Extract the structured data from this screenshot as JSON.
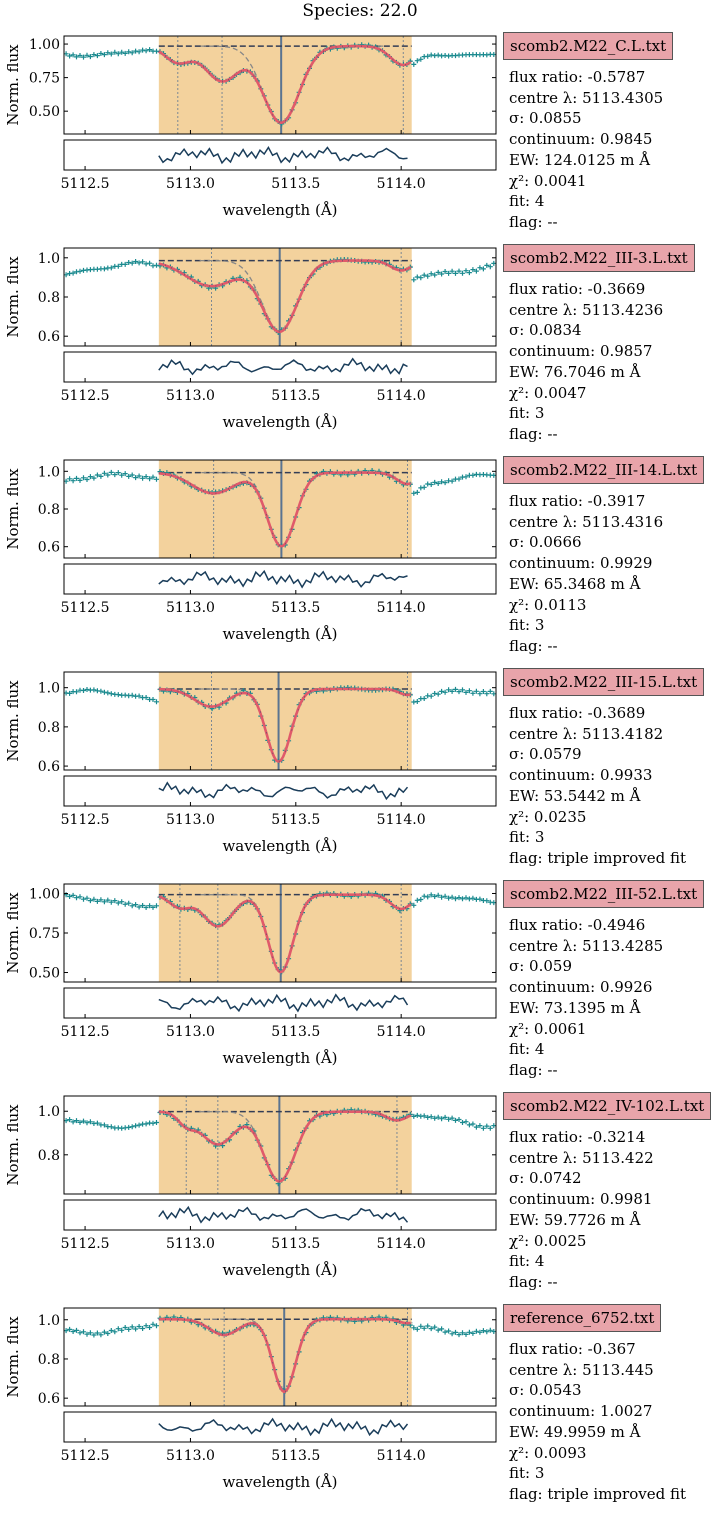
{
  "figure": {
    "title": "Species: 22.0"
  },
  "axes_text": {
    "ylabel": "Norm. flux",
    "xlabel": "wavelength (Å)"
  },
  "labels": {
    "flux_ratio": "flux ratio: ",
    "centre": "centre λ: ",
    "sigma": "σ: ",
    "continuum": "continuum: ",
    "ew": "EW: ",
    "ew_unit": " m Å",
    "chi2": "χ²: ",
    "fit": "fit: ",
    "flag": "flag: "
  },
  "colors": {
    "fit_window": "#f3d29d",
    "data_points": "#1b8a8f",
    "model": "#e05a6a",
    "component": "#3a4a6a",
    "continuum": "#333d55",
    "centre_line": "#4a6a90",
    "residual": "#1a3d5a",
    "filename_box": "#e8a4aa"
  },
  "panels": [
    {
      "file": "scomb2.M22_C.L.txt",
      "flux_ratio": "-0.5787",
      "centre": "5113.4305",
      "sigma": "0.0855",
      "continuum": "0.9845",
      "ew": "124.0125",
      "chi2": "0.0041",
      "fit": "4",
      "flag": "--",
      "yticks": [
        "0.50",
        "0.75",
        "1.00"
      ]
    },
    {
      "file": "scomb2.M22_III-3.L.txt",
      "flux_ratio": "-0.3669",
      "centre": "5113.4236",
      "sigma": "0.0834",
      "continuum": "0.9857",
      "ew": "76.7046",
      "chi2": "0.0047",
      "fit": "3",
      "flag": "--",
      "yticks": [
        "0.6",
        "0.8",
        "1.0"
      ]
    },
    {
      "file": "scomb2.M22_III-14.L.txt",
      "flux_ratio": "-0.3917",
      "centre": "5113.4316",
      "sigma": "0.0666",
      "continuum": "0.9929",
      "ew": "65.3468",
      "chi2": "0.0113",
      "fit": "3",
      "flag": "--",
      "yticks": [
        "0.6",
        "0.8",
        "1.0"
      ]
    },
    {
      "file": "scomb2.M22_III-15.L.txt",
      "flux_ratio": "-0.3689",
      "centre": "5113.4182",
      "sigma": "0.0579",
      "continuum": "0.9933",
      "ew": "53.5442",
      "chi2": "0.0235",
      "fit": "3",
      "flag": "triple improved fit",
      "yticks": [
        "0.6",
        "0.8",
        "1.0"
      ]
    },
    {
      "file": "scomb2.M22_III-52.L.txt",
      "flux_ratio": "-0.4946",
      "centre": "5113.4285",
      "sigma": "0.059",
      "continuum": "0.9926",
      "ew": "73.1395",
      "chi2": "0.0061",
      "fit": "4",
      "flag": "--",
      "yticks": [
        "0.50",
        "0.75",
        "1.00"
      ]
    },
    {
      "file": "scomb2.M22_IV-102.L.txt",
      "flux_ratio": "-0.3214",
      "centre": "5113.422",
      "sigma": "0.0742",
      "continuum": "0.9981",
      "ew": "59.7726",
      "chi2": "0.0025",
      "fit": "4",
      "flag": "--",
      "yticks": [
        "0.8",
        "1.0"
      ]
    },
    {
      "file": "reference_6752.txt",
      "flux_ratio": "-0.367",
      "centre": "5113.445",
      "sigma": "0.0543",
      "continuum": "1.0027",
      "ew": "49.9959",
      "chi2": "0.0093",
      "fit": "3",
      "flag": "triple improved fit",
      "yticks": [
        "0.6",
        "0.8",
        "1.0"
      ]
    }
  ],
  "chart_data": [
    {
      "type": "line",
      "title": "scomb2.M22_C.L.txt",
      "xlabel": "wavelength (Å)",
      "ylabel": "Norm. flux",
      "xlim": [
        5112.4,
        5114.45
      ],
      "ylim": [
        0.33,
        1.06
      ],
      "xticks": [
        5112.5,
        5113.0,
        5113.5,
        5114.0
      ],
      "yticks": [
        0.5,
        0.75,
        1.0
      ],
      "window": [
        5112.85,
        5114.05
      ],
      "continuum": 0.9845,
      "components": [
        {
          "center": 5112.94,
          "depth": 0.12,
          "sigma": 0.06
        },
        {
          "center": 5113.15,
          "depth": 0.26,
          "sigma": 0.08
        },
        {
          "center": 5113.4305,
          "depth": 0.57,
          "sigma": 0.0855
        },
        {
          "center": 5114.01,
          "depth": 0.14,
          "sigma": 0.06
        }
      ],
      "residual_amp": 0.6,
      "lines": [
        5112.94,
        5113.15,
        5113.4305,
        5114.01
      ]
    },
    {
      "type": "line",
      "title": "scomb2.M22_III-3.L.txt",
      "xlabel": "wavelength (Å)",
      "ylabel": "Norm. flux",
      "xlim": [
        5112.4,
        5114.45
      ],
      "ylim": [
        0.55,
        1.05
      ],
      "xticks": [
        5112.5,
        5113.0,
        5113.5,
        5114.0
      ],
      "yticks": [
        0.6,
        0.8,
        1.0
      ],
      "window": [
        5112.85,
        5114.05
      ],
      "continuum": 0.9857,
      "components": [
        {
          "center": 5113.1,
          "depth": 0.13,
          "sigma": 0.12
        },
        {
          "center": 5113.4236,
          "depth": 0.36,
          "sigma": 0.0834
        },
        {
          "center": 5114.0,
          "depth": 0.05,
          "sigma": 0.05
        }
      ],
      "residual_amp": 0.6,
      "lines": [
        5113.1,
        5113.4236,
        5114.0
      ]
    },
    {
      "type": "line",
      "title": "scomb2.M22_III-14.L.txt",
      "xlabel": "wavelength (Å)",
      "ylabel": "Norm. flux",
      "xlim": [
        5112.4,
        5114.45
      ],
      "ylim": [
        0.54,
        1.06
      ],
      "xticks": [
        5112.5,
        5113.0,
        5113.5,
        5114.0
      ],
      "yticks": [
        0.6,
        0.8,
        1.0
      ],
      "window": [
        5112.85,
        5114.05
      ],
      "continuum": 0.9929,
      "components": [
        {
          "center": 5113.11,
          "depth": 0.11,
          "sigma": 0.1
        },
        {
          "center": 5113.4316,
          "depth": 0.39,
          "sigma": 0.0666
        },
        {
          "center": 5114.03,
          "depth": 0.06,
          "sigma": 0.05
        }
      ],
      "residual_amp": 0.6,
      "lines": [
        5113.11,
        5113.4316,
        5114.03
      ]
    },
    {
      "type": "line",
      "title": "scomb2.M22_III-15.L.txt",
      "xlabel": "wavelength (Å)",
      "ylabel": "Norm. flux",
      "xlim": [
        5112.4,
        5114.45
      ],
      "ylim": [
        0.58,
        1.08
      ],
      "xticks": [
        5112.5,
        5113.0,
        5113.5,
        5114.0
      ],
      "yticks": [
        0.6,
        0.8,
        1.0
      ],
      "window": [
        5112.85,
        5114.05
      ],
      "continuum": 0.9933,
      "components": [
        {
          "center": 5113.1,
          "depth": 0.09,
          "sigma": 0.08
        },
        {
          "center": 5113.4182,
          "depth": 0.37,
          "sigma": 0.0579
        },
        {
          "center": 5114.03,
          "depth": 0.03,
          "sigma": 0.04
        }
      ],
      "residual_amp": 0.6,
      "lines": [
        5113.1,
        5113.4182,
        5114.03
      ]
    },
    {
      "type": "line",
      "title": "scomb2.M22_III-52.L.txt",
      "xlabel": "wavelength (Å)",
      "ylabel": "Norm. flux",
      "xlim": [
        5112.4,
        5114.45
      ],
      "ylim": [
        0.44,
        1.06
      ],
      "xticks": [
        5112.5,
        5113.0,
        5113.5,
        5114.0
      ],
      "yticks": [
        0.5,
        0.75,
        1.0
      ],
      "window": [
        5112.85,
        5114.05
      ],
      "continuum": 0.9926,
      "components": [
        {
          "center": 5112.95,
          "depth": 0.08,
          "sigma": 0.05
        },
        {
          "center": 5113.13,
          "depth": 0.2,
          "sigma": 0.07
        },
        {
          "center": 5113.4285,
          "depth": 0.49,
          "sigma": 0.059
        },
        {
          "center": 5114.0,
          "depth": 0.09,
          "sigma": 0.05
        }
      ],
      "residual_amp": 0.6,
      "lines": [
        5112.95,
        5113.13,
        5113.4285,
        5114.0
      ]
    },
    {
      "type": "line",
      "title": "scomb2.M22_IV-102.L.txt",
      "xlabel": "wavelength (Å)",
      "ylabel": "Norm. flux",
      "xlim": [
        5112.4,
        5114.45
      ],
      "ylim": [
        0.62,
        1.07
      ],
      "xticks": [
        5112.5,
        5113.0,
        5113.5,
        5114.0
      ],
      "yticks": [
        0.8,
        1.0
      ],
      "window": [
        5112.85,
        5114.05
      ],
      "continuum": 0.9981,
      "components": [
        {
          "center": 5112.98,
          "depth": 0.05,
          "sigma": 0.04
        },
        {
          "center": 5113.13,
          "depth": 0.15,
          "sigma": 0.08
        },
        {
          "center": 5113.422,
          "depth": 0.32,
          "sigma": 0.0742
        },
        {
          "center": 5113.98,
          "depth": 0.04,
          "sigma": 0.05
        }
      ],
      "residual_amp": 0.6,
      "lines": [
        5112.98,
        5113.13,
        5113.422,
        5113.98
      ]
    },
    {
      "type": "line",
      "title": "reference_6752.txt",
      "xlabel": "wavelength (Å)",
      "ylabel": "Norm. flux",
      "xlim": [
        5112.4,
        5114.45
      ],
      "ylim": [
        0.56,
        1.06
      ],
      "xticks": [
        5112.5,
        5113.0,
        5113.5,
        5114.0
      ],
      "yticks": [
        0.6,
        0.8,
        1.0
      ],
      "window": [
        5112.85,
        5114.05
      ],
      "continuum": 1.0027,
      "components": [
        {
          "center": 5113.16,
          "depth": 0.08,
          "sigma": 0.07
        },
        {
          "center": 5113.445,
          "depth": 0.37,
          "sigma": 0.0543
        },
        {
          "center": 5114.03,
          "depth": 0.02,
          "sigma": 0.04
        }
      ],
      "residual_amp": 0.6,
      "lines": [
        5113.16,
        5113.445,
        5114.03
      ]
    }
  ]
}
